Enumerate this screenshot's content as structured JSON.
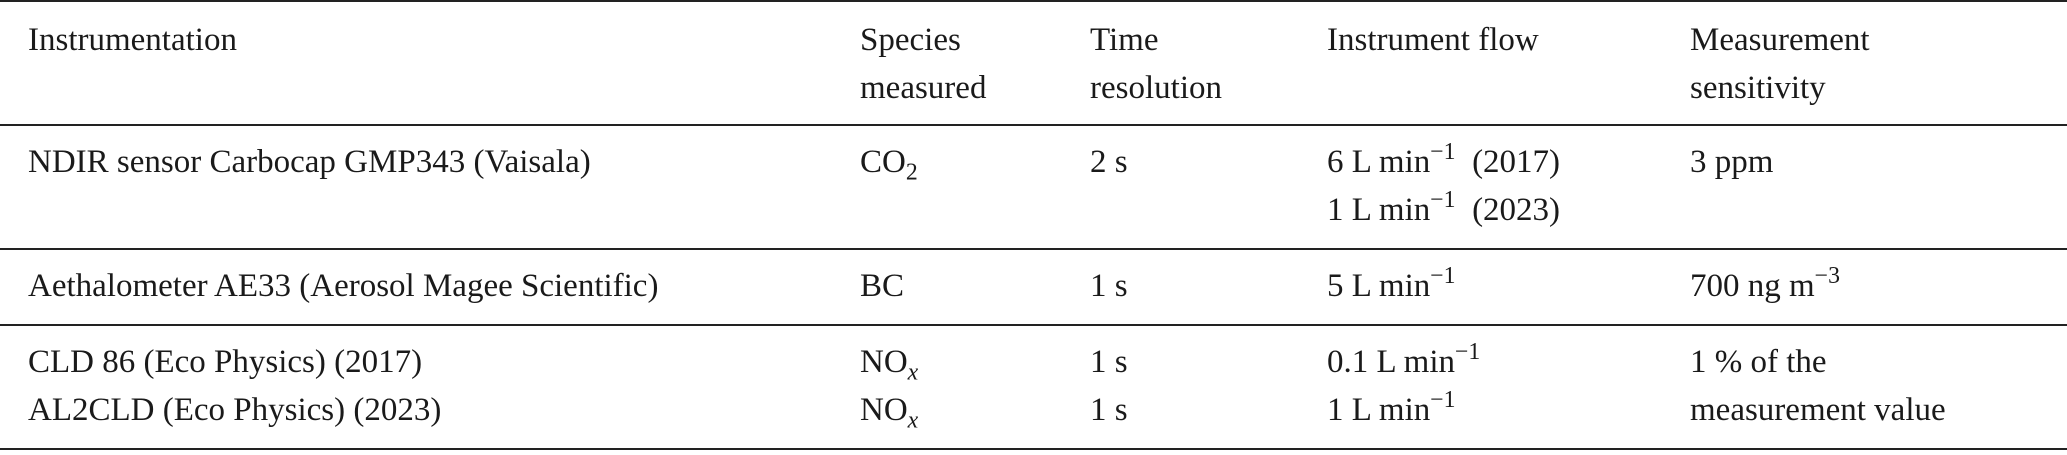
{
  "headers": {
    "instrumentation": "Instrumentation",
    "species_line1": "Species",
    "species_line2": "measured",
    "time_line1": "Time",
    "time_line2": "resolution",
    "flow": "Instrument flow",
    "sens_line1": "Measurement",
    "sens_line2": "sensitivity"
  },
  "rows": [
    {
      "instrument": [
        "NDIR sensor Carbocap GMP343 (Vaisala)"
      ],
      "species": [
        {
          "base": "CO",
          "sub": "2"
        }
      ],
      "time": [
        "2 s"
      ],
      "flow": [
        {
          "pre": "6 L min",
          "sup": "−1",
          "post": "  (2017)"
        },
        {
          "pre": "1 L min",
          "sup": "−1",
          "post": "  (2023)"
        }
      ],
      "sensitivity": [
        {
          "pre": "3 ppm",
          "sup": "",
          "post": ""
        }
      ]
    },
    {
      "instrument": [
        "Aethalometer AE33 (Aerosol Magee Scientific)"
      ],
      "species": [
        {
          "base": "BC",
          "sub": ""
        }
      ],
      "time": [
        "1 s"
      ],
      "flow": [
        {
          "pre": "5 L min",
          "sup": "−1",
          "post": ""
        }
      ],
      "sensitivity": [
        {
          "pre": "700 ng m",
          "sup": "−3",
          "post": ""
        }
      ]
    },
    {
      "instrument": [
        "CLD 86 (Eco Physics) (2017)",
        "AL2CLD (Eco Physics) (2023)"
      ],
      "species": [
        {
          "base": "NO",
          "sub": "x"
        },
        {
          "base": "NO",
          "sub": "x"
        }
      ],
      "time": [
        "1 s",
        "1 s"
      ],
      "flow": [
        {
          "pre": "0.1 L min",
          "sup": "−1",
          "post": ""
        },
        {
          "pre": "1 L min",
          "sup": "−1",
          "post": ""
        }
      ],
      "sensitivity": [
        {
          "pre": "1 % of the",
          "sup": "",
          "post": ""
        },
        {
          "pre": "measurement value",
          "sup": "",
          "post": ""
        }
      ]
    }
  ]
}
